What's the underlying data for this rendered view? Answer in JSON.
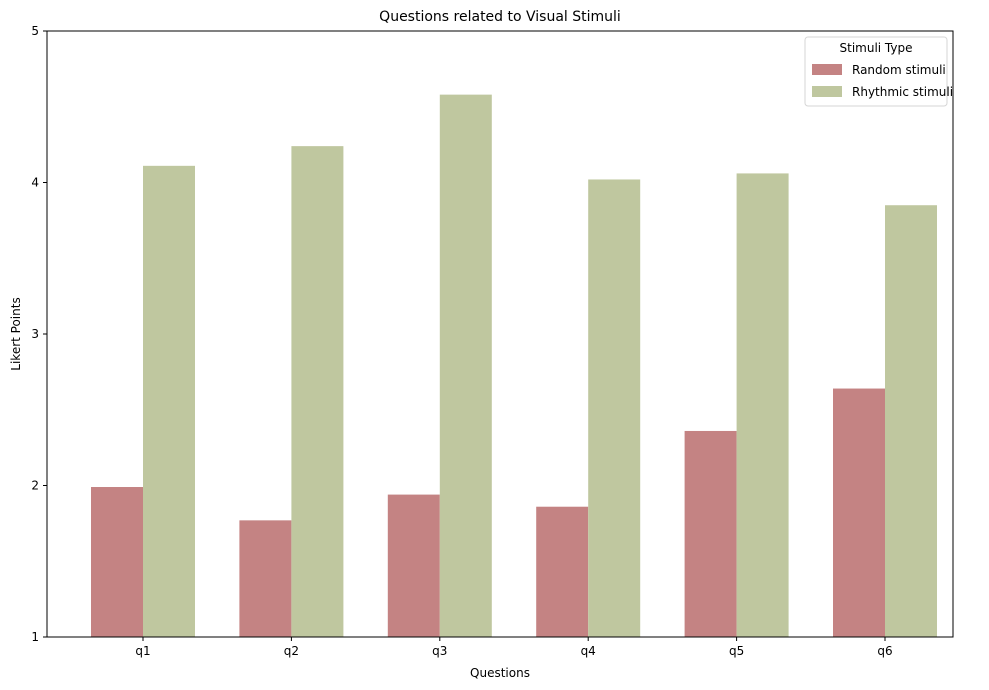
{
  "chart_data": {
    "type": "bar",
    "title": "Questions related to Visual Stimuli",
    "xlabel": "Questions",
    "ylabel": "Likert Points",
    "categories": [
      "q1",
      "q2",
      "q3",
      "q4",
      "q5",
      "q6"
    ],
    "yticks": [
      "1",
      "2",
      "3",
      "4",
      "5"
    ],
    "ylim": [
      1,
      5
    ],
    "grid": false,
    "legend": {
      "title": "Stimuli Type",
      "placement": "top-right"
    },
    "series": [
      {
        "name": "Random stimuli",
        "color": "#c48383",
        "values": [
          1.99,
          1.77,
          1.94,
          1.86,
          2.36,
          2.64
        ]
      },
      {
        "name": "Rhythmic stimuli",
        "color": "#bfc79f",
        "values": [
          4.11,
          4.24,
          4.58,
          4.02,
          4.06,
          3.85
        ]
      }
    ]
  }
}
